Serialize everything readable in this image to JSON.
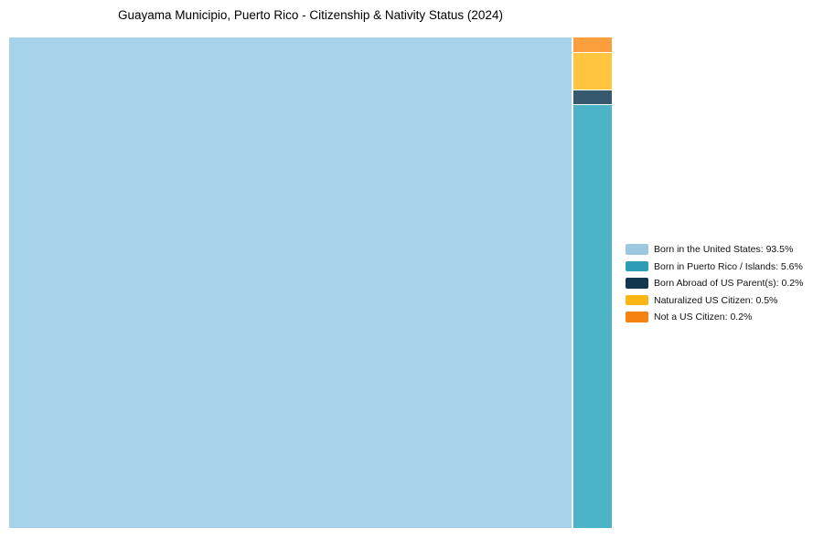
{
  "chart_data": {
    "type": "treemap",
    "title": "Guayama Municipio, Puerto Rico - Citizenship & Nativity Status (2024)",
    "unit": "%",
    "categories": [
      "Born in the United States",
      "Born in Puerto Rico / Islands",
      "Born Abroad of US Parent(s)",
      "Naturalized US Citizen",
      "Not a US Citizen"
    ],
    "values": [
      93.5,
      5.6,
      0.2,
      0.5,
      0.2
    ],
    "tile_colors": [
      "#A6D3EA",
      "#4DB3C6",
      "#36596D",
      "#FFC53E",
      "#FB9E3C"
    ],
    "background": "#FFFFFF",
    "layout_hints": {
      "main_tile_index": 0,
      "right_column_top_to_bottom": [
        4,
        3,
        2,
        1
      ],
      "legend_position": "right-center",
      "grid": false
    },
    "legend": {
      "entries": [
        {
          "label": "Born in the United States: 93.5%",
          "color": "#9DC9E0"
        },
        {
          "label": "Born in Puerto Rico / Islands: 5.6%",
          "color": "#2D9DB6"
        },
        {
          "label": "Born Abroad of US Parent(s): 0.2%",
          "color": "#11374F"
        },
        {
          "label": "Naturalized US Citizen: 0.5%",
          "color": "#FCB515"
        },
        {
          "label": "Not a US Citizen: 0.2%",
          "color": "#F6830F"
        }
      ]
    }
  }
}
